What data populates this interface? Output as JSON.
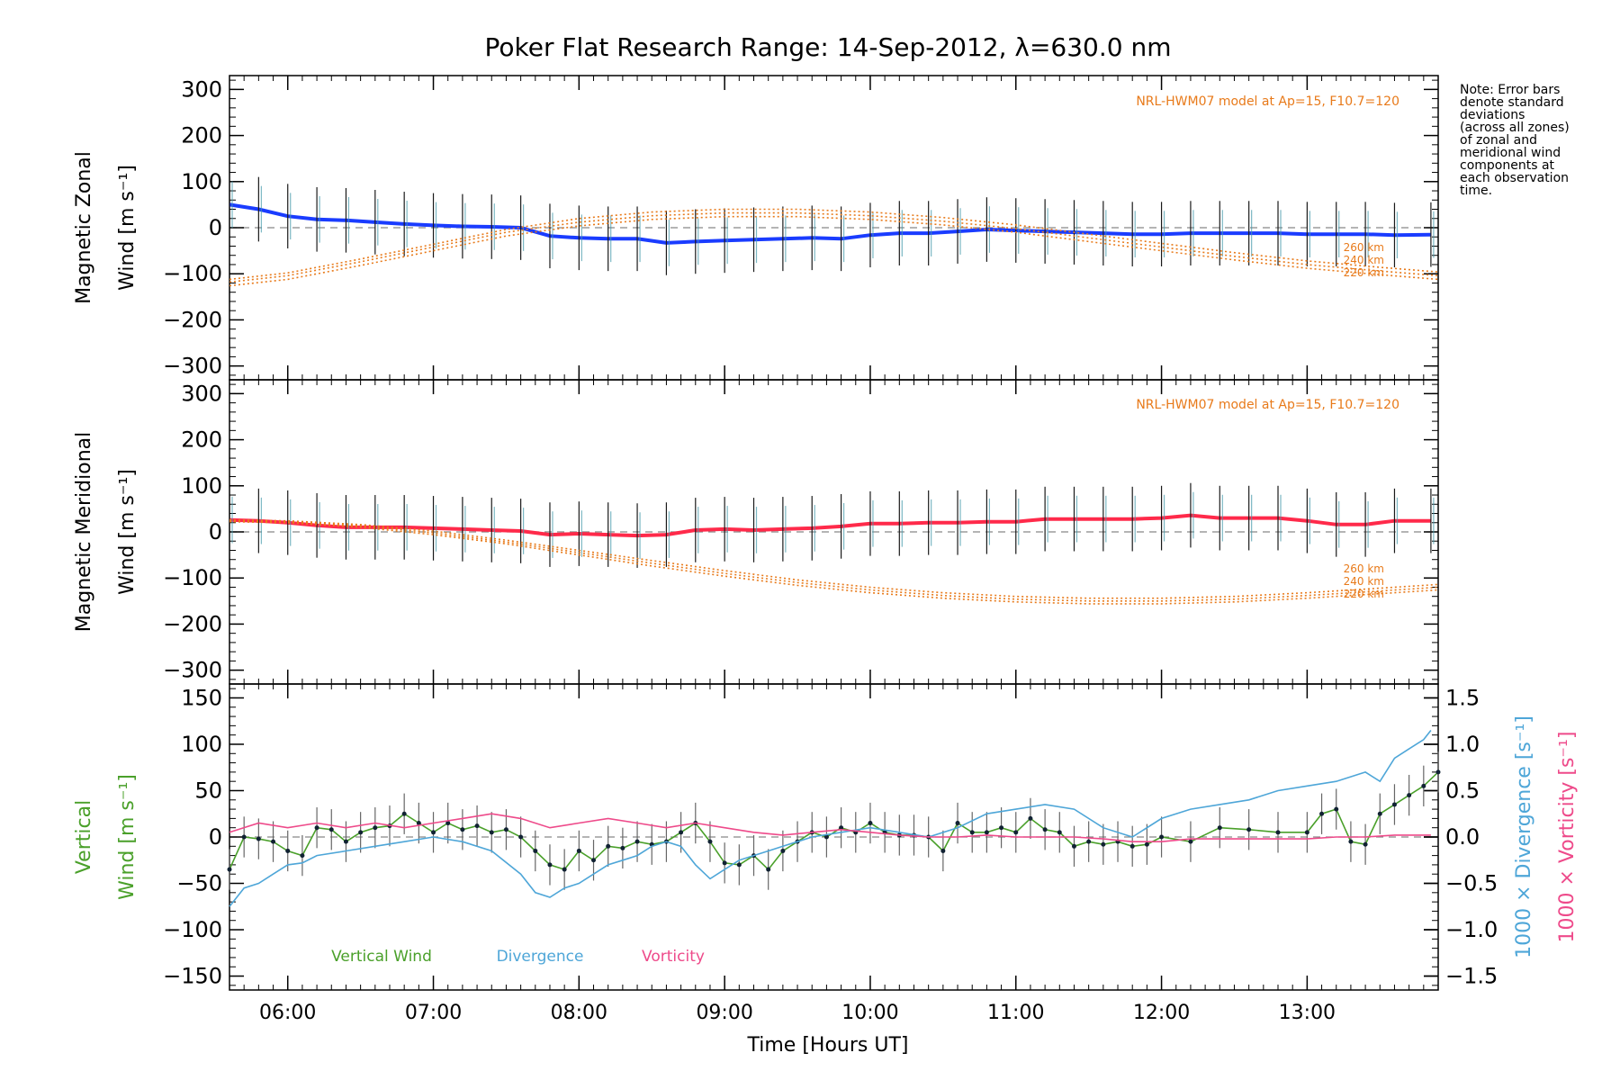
{
  "chart_data": [
    {
      "panel": "zonal",
      "type": "line",
      "title": "Poker Flat Research Range: 14-Sep-2012, λ=630.0 nm",
      "ylabel_line1": "Magnetic Zonal",
      "ylabel_line2": "Wind [m s⁻¹]",
      "ylim": [
        -330,
        330
      ],
      "yticks": [
        300,
        200,
        100,
        0,
        -100,
        -200,
        -300
      ],
      "xlim": [
        5.6,
        13.9
      ],
      "model_label": "NRL-HWM07 model at Ap=15, F10.7=120",
      "model_altitudes": [
        "260 km",
        "240 km",
        "220 km"
      ],
      "series": [
        {
          "role": "mean wind",
          "color": "#1a3cff",
          "x": [
            5.6,
            5.8,
            6.0,
            6.2,
            6.4,
            6.6,
            6.8,
            7.0,
            7.2,
            7.4,
            7.6,
            7.8,
            8.0,
            8.2,
            8.4,
            8.6,
            8.8,
            9.0,
            9.2,
            9.4,
            9.6,
            9.8,
            10.0,
            10.2,
            10.4,
            10.6,
            10.8,
            11.0,
            11.2,
            11.4,
            11.6,
            11.8,
            12.0,
            12.2,
            12.4,
            12.6,
            12.8,
            13.0,
            13.2,
            13.4,
            13.6,
            13.85
          ],
          "y": [
            50,
            40,
            25,
            18,
            16,
            12,
            8,
            5,
            3,
            2,
            0,
            -18,
            -22,
            -24,
            -24,
            -33,
            -30,
            -28,
            -26,
            -24,
            -22,
            -24,
            -16,
            -12,
            -12,
            -8,
            -4,
            -6,
            -8,
            -10,
            -12,
            -14,
            -14,
            -12,
            -12,
            -12,
            -12,
            -14,
            -14,
            -14,
            -16,
            -15
          ]
        },
        {
          "role": "model 260 km",
          "color": "#e87a1a",
          "x": [
            5.6,
            6.0,
            6.5,
            7.0,
            7.5,
            8.0,
            8.5,
            9.0,
            9.5,
            10.0,
            10.5,
            11.0,
            11.5,
            12.0,
            12.5,
            13.0,
            13.5,
            13.9
          ],
          "y": [
            -112,
            -98,
            -68,
            -36,
            -4,
            20,
            34,
            40,
            40,
            34,
            22,
            6,
            -14,
            -34,
            -54,
            -72,
            -86,
            -96
          ]
        },
        {
          "role": "model 240 km",
          "color": "#e87a1a",
          "x": [
            5.6,
            6.0,
            6.5,
            7.0,
            7.5,
            8.0,
            8.5,
            9.0,
            9.5,
            10.0,
            10.5,
            11.0,
            11.5,
            12.0,
            12.5,
            13.0,
            13.5,
            13.9
          ],
          "y": [
            -118,
            -104,
            -74,
            -42,
            -10,
            12,
            26,
            32,
            32,
            26,
            14,
            -2,
            -22,
            -42,
            -62,
            -80,
            -94,
            -104
          ]
        },
        {
          "role": "model 220 km",
          "color": "#e87a1a",
          "x": [
            5.6,
            6.0,
            6.5,
            7.0,
            7.5,
            8.0,
            8.5,
            9.0,
            9.5,
            10.0,
            10.5,
            11.0,
            11.5,
            12.0,
            12.5,
            13.0,
            13.5,
            13.9
          ],
          "y": [
            -126,
            -112,
            -82,
            -50,
            -18,
            4,
            18,
            24,
            24,
            18,
            6,
            -10,
            -30,
            -50,
            -70,
            -88,
            -102,
            -112
          ]
        }
      ]
    },
    {
      "panel": "meridional",
      "type": "line",
      "ylabel_line1": "Magnetic Meridional",
      "ylabel_line2": "Wind [m s⁻¹]",
      "ylim": [
        -330,
        330
      ],
      "yticks": [
        300,
        200,
        100,
        0,
        -100,
        -200,
        -300
      ],
      "xlim": [
        5.6,
        13.9
      ],
      "model_label": "NRL-HWM07 model at Ap=15, F10.7=120",
      "model_altitudes": [
        "260 km",
        "240 km",
        "220 km"
      ],
      "series": [
        {
          "role": "mean wind",
          "color": "#ff2a4a",
          "x": [
            5.6,
            5.8,
            6.0,
            6.2,
            6.4,
            6.6,
            6.8,
            7.0,
            7.2,
            7.4,
            7.6,
            7.8,
            8.0,
            8.2,
            8.4,
            8.6,
            8.8,
            9.0,
            9.2,
            9.4,
            9.6,
            9.8,
            10.0,
            10.2,
            10.4,
            10.6,
            10.8,
            11.0,
            11.2,
            11.4,
            11.6,
            11.8,
            12.0,
            12.2,
            12.4,
            12.6,
            12.8,
            13.0,
            13.2,
            13.4,
            13.6,
            13.85
          ],
          "y": [
            26,
            24,
            20,
            14,
            10,
            10,
            10,
            8,
            6,
            4,
            2,
            -6,
            -4,
            -6,
            -8,
            -6,
            4,
            6,
            4,
            6,
            8,
            12,
            18,
            18,
            20,
            20,
            22,
            22,
            28,
            28,
            28,
            28,
            30,
            36,
            30,
            30,
            30,
            24,
            16,
            16,
            24,
            24
          ]
        },
        {
          "role": "model 260 km",
          "color": "#e87a1a",
          "x": [
            5.6,
            6.0,
            6.5,
            7.0,
            7.5,
            8.0,
            8.5,
            9.0,
            9.5,
            10.0,
            10.5,
            11.0,
            11.5,
            12.0,
            12.5,
            13.0,
            13.5,
            13.9
          ],
          "y": [
            26,
            24,
            16,
            2,
            -18,
            -40,
            -62,
            -84,
            -104,
            -120,
            -132,
            -140,
            -144,
            -144,
            -140,
            -132,
            -122,
            -114
          ]
        },
        {
          "role": "model 240 km",
          "color": "#e87a1a",
          "x": [
            5.6,
            6.0,
            6.5,
            7.0,
            7.5,
            8.0,
            8.5,
            9.0,
            9.5,
            10.0,
            10.5,
            11.0,
            11.5,
            12.0,
            12.5,
            13.0,
            13.5,
            13.9
          ],
          "y": [
            24,
            22,
            13,
            -2,
            -22,
            -45,
            -68,
            -90,
            -110,
            -126,
            -138,
            -146,
            -150,
            -150,
            -146,
            -138,
            -128,
            -120
          ]
        },
        {
          "role": "model 220 km",
          "color": "#e87a1a",
          "x": [
            5.6,
            6.0,
            6.5,
            7.0,
            7.5,
            8.0,
            8.5,
            9.0,
            9.5,
            10.0,
            10.5,
            11.0,
            11.5,
            12.0,
            12.5,
            13.0,
            13.5,
            13.9
          ],
          "y": [
            22,
            20,
            10,
            -6,
            -26,
            -50,
            -74,
            -96,
            -116,
            -132,
            -144,
            -152,
            -156,
            -156,
            -152,
            -144,
            -134,
            -126
          ]
        }
      ]
    },
    {
      "panel": "vertical",
      "type": "line",
      "xlabel": "Time [Hours UT]",
      "ylabel_line1": "Vertical",
      "ylabel_line2": "Wind [m s⁻¹]",
      "y2label_div": "1000 × Divergence [s⁻¹]",
      "y2label_vort": "1000 × Vorticity [s⁻¹]",
      "ylim": [
        -165,
        165
      ],
      "yticks": [
        150,
        100,
        50,
        0,
        -50,
        -100,
        -150
      ],
      "y2lim": [
        -1.65,
        1.65
      ],
      "y2ticks": [
        "1.5",
        "1.0",
        "0.5",
        "0.0",
        "−0.5",
        "−1.0",
        "−1.5"
      ],
      "xlim": [
        5.6,
        13.9
      ],
      "xticks": [
        "06:00",
        "07:00",
        "08:00",
        "09:00",
        "10:00",
        "11:00",
        "12:00",
        "13:00"
      ],
      "legend": [
        "Vertical Wind",
        "Divergence",
        "Vorticity"
      ],
      "series": [
        {
          "name": "Vertical Wind",
          "color": "#4aa02a",
          "x": [
            5.6,
            5.7,
            5.8,
            5.9,
            6.0,
            6.1,
            6.2,
            6.3,
            6.4,
            6.5,
            6.6,
            6.7,
            6.8,
            6.9,
            7.0,
            7.1,
            7.2,
            7.3,
            7.4,
            7.5,
            7.6,
            7.7,
            7.8,
            7.9,
            8.0,
            8.1,
            8.2,
            8.3,
            8.4,
            8.5,
            8.6,
            8.7,
            8.8,
            8.9,
            9.0,
            9.1,
            9.2,
            9.3,
            9.4,
            9.5,
            9.6,
            9.7,
            9.8,
            9.9,
            10.0,
            10.1,
            10.2,
            10.3,
            10.4,
            10.5,
            10.6,
            10.7,
            10.8,
            10.9,
            11.0,
            11.1,
            11.2,
            11.3,
            11.4,
            11.5,
            11.6,
            11.7,
            11.8,
            11.9,
            12.0,
            12.2,
            12.4,
            12.6,
            12.8,
            13.0,
            13.1,
            13.2,
            13.3,
            13.4,
            13.5,
            13.6,
            13.7,
            13.8,
            13.9
          ],
          "y": [
            -35,
            0,
            -2,
            -5,
            -15,
            -20,
            10,
            8,
            -5,
            5,
            10,
            12,
            25,
            15,
            5,
            15,
            8,
            12,
            5,
            8,
            0,
            -15,
            -30,
            -35,
            -15,
            -25,
            -10,
            -12,
            -5,
            -8,
            -5,
            5,
            15,
            -5,
            -28,
            -30,
            -20,
            -35,
            -15,
            -5,
            5,
            0,
            10,
            5,
            15,
            5,
            2,
            2,
            0,
            -15,
            15,
            5,
            5,
            10,
            5,
            20,
            8,
            5,
            -10,
            -5,
            -8,
            -5,
            -10,
            -8,
            0,
            -5,
            10,
            8,
            5,
            5,
            25,
            30,
            -5,
            -8,
            25,
            35,
            45,
            55,
            70
          ]
        },
        {
          "name": "Divergence",
          "color": "#4ea6d8",
          "x": [
            5.6,
            5.7,
            5.8,
            5.9,
            6.0,
            6.1,
            6.2,
            6.4,
            6.6,
            6.8,
            7.0,
            7.2,
            7.4,
            7.6,
            7.7,
            7.8,
            7.9,
            8.0,
            8.1,
            8.2,
            8.3,
            8.4,
            8.5,
            8.6,
            8.7,
            8.8,
            8.9,
            9.0,
            9.1,
            9.2,
            9.3,
            9.4,
            9.5,
            9.6,
            9.8,
            10.0,
            10.2,
            10.4,
            10.6,
            10.8,
            11.0,
            11.2,
            11.4,
            11.6,
            11.8,
            12.0,
            12.2,
            12.4,
            12.6,
            12.8,
            13.0,
            13.2,
            13.4,
            13.5,
            13.6,
            13.7,
            13.8,
            13.85
          ],
          "y": [
            -0.75,
            -0.55,
            -0.5,
            -0.4,
            -0.3,
            -0.28,
            -0.2,
            -0.15,
            -0.1,
            -0.05,
            0.0,
            -0.05,
            -0.15,
            -0.4,
            -0.6,
            -0.65,
            -0.55,
            -0.5,
            -0.4,
            -0.3,
            -0.25,
            -0.2,
            -0.1,
            -0.05,
            -0.1,
            -0.3,
            -0.45,
            -0.35,
            -0.25,
            -0.2,
            -0.15,
            -0.1,
            -0.05,
            0.0,
            0.05,
            0.1,
            0.05,
            0.0,
            0.1,
            0.25,
            0.3,
            0.35,
            0.3,
            0.1,
            0.0,
            0.2,
            0.3,
            0.35,
            0.4,
            0.5,
            0.55,
            0.6,
            0.7,
            0.6,
            0.85,
            0.95,
            1.05,
            1.15
          ]
        },
        {
          "name": "Vorticity",
          "color": "#ee4a8a",
          "x": [
            5.6,
            5.8,
            6.0,
            6.2,
            6.4,
            6.6,
            6.8,
            7.0,
            7.2,
            7.4,
            7.6,
            7.8,
            8.0,
            8.2,
            8.4,
            8.6,
            8.8,
            9.0,
            9.2,
            9.4,
            9.6,
            9.8,
            10.0,
            10.2,
            10.4,
            10.6,
            10.8,
            11.0,
            11.2,
            11.4,
            11.6,
            11.8,
            12.0,
            12.2,
            12.4,
            12.6,
            12.8,
            13.0,
            13.2,
            13.4,
            13.6,
            13.85
          ],
          "y": [
            0.05,
            0.15,
            0.1,
            0.15,
            0.1,
            0.15,
            0.1,
            0.15,
            0.2,
            0.25,
            0.2,
            0.1,
            0.15,
            0.2,
            0.15,
            0.1,
            0.15,
            0.1,
            0.05,
            0.02,
            0.05,
            0.08,
            0.05,
            0.02,
            0.0,
            0.0,
            0.02,
            0.0,
            0.0,
            0.0,
            -0.02,
            -0.05,
            -0.05,
            -0.02,
            -0.02,
            -0.02,
            -0.02,
            -0.02,
            0.0,
            0.0,
            0.02,
            0.02
          ]
        }
      ]
    }
  ],
  "note": {
    "lines": [
      "Note: Error bars",
      "denote standard",
      "deviations",
      "(across all zones)",
      "of zonal and",
      "meridional wind",
      "components at",
      "each observation",
      "time."
    ]
  }
}
